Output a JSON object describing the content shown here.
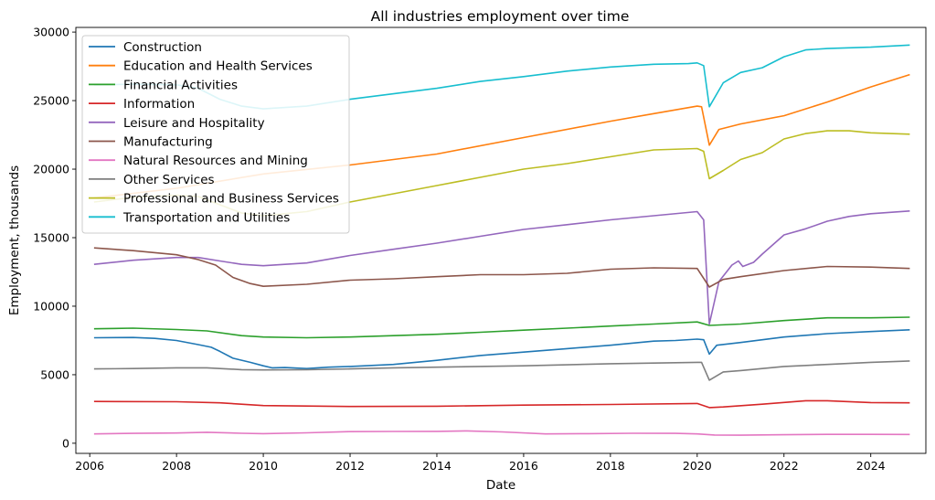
{
  "chart_data": {
    "type": "line",
    "title": "All industries employment over time",
    "xlabel": "Date",
    "ylabel": "Employment, thousands",
    "xlim": [
      2005.68,
      2025.27
    ],
    "ylim": [
      -740,
      30340
    ],
    "xticks": [
      2006,
      2008,
      2010,
      2012,
      2014,
      2016,
      2018,
      2020,
      2022,
      2024
    ],
    "yticks": [
      0,
      5000,
      10000,
      15000,
      20000,
      25000,
      30000
    ],
    "grid": false,
    "legend_position": "top-left",
    "series": [
      {
        "name": "Construction",
        "color": "#1f77b4",
        "points": [
          [
            2006.1,
            7700
          ],
          [
            2007.0,
            7720
          ],
          [
            2007.5,
            7650
          ],
          [
            2008.0,
            7500
          ],
          [
            2008.5,
            7200
          ],
          [
            2008.8,
            7000
          ],
          [
            2009.0,
            6700
          ],
          [
            2009.3,
            6200
          ],
          [
            2009.7,
            5900
          ],
          [
            2010.0,
            5650
          ],
          [
            2010.2,
            5500
          ],
          [
            2010.5,
            5520
          ],
          [
            2011.0,
            5450
          ],
          [
            2011.5,
            5550
          ],
          [
            2012.0,
            5600
          ],
          [
            2013.0,
            5750
          ],
          [
            2014.0,
            6050
          ],
          [
            2015.0,
            6400
          ],
          [
            2016.0,
            6650
          ],
          [
            2017.0,
            6900
          ],
          [
            2018.0,
            7150
          ],
          [
            2019.0,
            7450
          ],
          [
            2019.5,
            7500
          ],
          [
            2020.0,
            7600
          ],
          [
            2020.15,
            7550
          ],
          [
            2020.28,
            6500
          ],
          [
            2020.45,
            7150
          ],
          [
            2021.0,
            7350
          ],
          [
            2022.0,
            7750
          ],
          [
            2023.0,
            8000
          ],
          [
            2024.0,
            8150
          ],
          [
            2024.9,
            8280
          ]
        ]
      },
      {
        "name": "Education and Health Services",
        "color": "#ff7f0e",
        "points": [
          [
            2006.1,
            17900
          ],
          [
            2008.0,
            18600
          ],
          [
            2010.0,
            19650
          ],
          [
            2012.0,
            20300
          ],
          [
            2014.0,
            21100
          ],
          [
            2016.0,
            22300
          ],
          [
            2018.0,
            23500
          ],
          [
            2019.0,
            24050
          ],
          [
            2020.0,
            24600
          ],
          [
            2020.1,
            24550
          ],
          [
            2020.28,
            21750
          ],
          [
            2020.5,
            22900
          ],
          [
            2021.0,
            23300
          ],
          [
            2022.0,
            23900
          ],
          [
            2023.0,
            24900
          ],
          [
            2024.0,
            26000
          ],
          [
            2024.9,
            26900
          ]
        ]
      },
      {
        "name": "Financial Activities",
        "color": "#2ca02c",
        "points": [
          [
            2006.1,
            8350
          ],
          [
            2007.0,
            8400
          ],
          [
            2008.0,
            8300
          ],
          [
            2008.7,
            8200
          ],
          [
            2009.5,
            7850
          ],
          [
            2010.0,
            7750
          ],
          [
            2011.0,
            7700
          ],
          [
            2012.0,
            7750
          ],
          [
            2013.0,
            7850
          ],
          [
            2014.0,
            7950
          ],
          [
            2015.0,
            8100
          ],
          [
            2016.0,
            8250
          ],
          [
            2017.0,
            8400
          ],
          [
            2018.0,
            8550
          ],
          [
            2019.0,
            8700
          ],
          [
            2020.0,
            8850
          ],
          [
            2020.28,
            8600
          ],
          [
            2021.0,
            8700
          ],
          [
            2022.0,
            8950
          ],
          [
            2023.0,
            9150
          ],
          [
            2024.0,
            9150
          ],
          [
            2024.9,
            9200
          ]
        ]
      },
      {
        "name": "Information",
        "color": "#d62728",
        "points": [
          [
            2006.1,
            3050
          ],
          [
            2008.0,
            3030
          ],
          [
            2009.0,
            2950
          ],
          [
            2010.0,
            2750
          ],
          [
            2012.0,
            2680
          ],
          [
            2014.0,
            2700
          ],
          [
            2016.0,
            2780
          ],
          [
            2018.0,
            2830
          ],
          [
            2020.0,
            2900
          ],
          [
            2020.28,
            2600
          ],
          [
            2020.6,
            2650
          ],
          [
            2021.5,
            2850
          ],
          [
            2022.5,
            3100
          ],
          [
            2023.0,
            3100
          ],
          [
            2024.0,
            2970
          ],
          [
            2024.9,
            2950
          ]
        ]
      },
      {
        "name": "Leisure and Hospitality",
        "color": "#9467bd",
        "points": [
          [
            2006.1,
            13050
          ],
          [
            2007.0,
            13350
          ],
          [
            2008.0,
            13550
          ],
          [
            2008.5,
            13550
          ],
          [
            2009.0,
            13300
          ],
          [
            2009.5,
            13050
          ],
          [
            2010.0,
            12950
          ],
          [
            2011.0,
            13150
          ],
          [
            2012.0,
            13700
          ],
          [
            2013.0,
            14150
          ],
          [
            2014.0,
            14600
          ],
          [
            2015.0,
            15100
          ],
          [
            2016.0,
            15600
          ],
          [
            2017.0,
            15950
          ],
          [
            2018.0,
            16300
          ],
          [
            2019.0,
            16600
          ],
          [
            2020.0,
            16900
          ],
          [
            2020.15,
            16300
          ],
          [
            2020.28,
            8700
          ],
          [
            2020.5,
            11800
          ],
          [
            2020.8,
            13000
          ],
          [
            2020.95,
            13300
          ],
          [
            2021.05,
            12900
          ],
          [
            2021.3,
            13200
          ],
          [
            2021.5,
            13800
          ],
          [
            2022.0,
            15200
          ],
          [
            2022.5,
            15650
          ],
          [
            2023.0,
            16200
          ],
          [
            2023.5,
            16550
          ],
          [
            2024.0,
            16750
          ],
          [
            2024.9,
            16950
          ]
        ]
      },
      {
        "name": "Manufacturing",
        "color": "#8c564b",
        "points": [
          [
            2006.1,
            14250
          ],
          [
            2007.0,
            14050
          ],
          [
            2008.0,
            13750
          ],
          [
            2008.5,
            13400
          ],
          [
            2008.9,
            13000
          ],
          [
            2009.3,
            12100
          ],
          [
            2009.7,
            11650
          ],
          [
            2010.0,
            11450
          ],
          [
            2011.0,
            11600
          ],
          [
            2012.0,
            11900
          ],
          [
            2013.0,
            12000
          ],
          [
            2014.0,
            12150
          ],
          [
            2015.0,
            12300
          ],
          [
            2016.0,
            12300
          ],
          [
            2017.0,
            12400
          ],
          [
            2018.0,
            12700
          ],
          [
            2019.0,
            12800
          ],
          [
            2020.0,
            12750
          ],
          [
            2020.28,
            11400
          ],
          [
            2020.6,
            11950
          ],
          [
            2021.0,
            12150
          ],
          [
            2022.0,
            12600
          ],
          [
            2023.0,
            12900
          ],
          [
            2024.0,
            12850
          ],
          [
            2024.9,
            12750
          ]
        ]
      },
      {
        "name": "Natural Resources and Mining",
        "color": "#e377c2",
        "points": [
          [
            2006.1,
            680
          ],
          [
            2007.0,
            720
          ],
          [
            2008.0,
            750
          ],
          [
            2008.7,
            800
          ],
          [
            2009.5,
            730
          ],
          [
            2010.0,
            700
          ],
          [
            2011.0,
            760
          ],
          [
            2012.0,
            850
          ],
          [
            2013.0,
            860
          ],
          [
            2014.0,
            870
          ],
          [
            2014.7,
            900
          ],
          [
            2015.5,
            830
          ],
          [
            2016.5,
            680
          ],
          [
            2017.5,
            700
          ],
          [
            2018.5,
            730
          ],
          [
            2019.5,
            720
          ],
          [
            2020.0,
            680
          ],
          [
            2020.4,
            600
          ],
          [
            2021.0,
            590
          ],
          [
            2022.0,
            620
          ],
          [
            2023.0,
            650
          ],
          [
            2024.0,
            650
          ],
          [
            2024.9,
            640
          ]
        ]
      },
      {
        "name": "Other Services",
        "color": "#7f7f7f",
        "points": [
          [
            2006.1,
            5420
          ],
          [
            2007.0,
            5450
          ],
          [
            2008.0,
            5500
          ],
          [
            2008.7,
            5500
          ],
          [
            2009.5,
            5370
          ],
          [
            2010.0,
            5350
          ],
          [
            2011.0,
            5360
          ],
          [
            2012.0,
            5420
          ],
          [
            2013.0,
            5500
          ],
          [
            2014.0,
            5550
          ],
          [
            2016.0,
            5650
          ],
          [
            2018.0,
            5800
          ],
          [
            2020.0,
            5900
          ],
          [
            2020.1,
            5900
          ],
          [
            2020.28,
            4600
          ],
          [
            2020.6,
            5200
          ],
          [
            2021.0,
            5300
          ],
          [
            2022.0,
            5600
          ],
          [
            2023.0,
            5750
          ],
          [
            2024.0,
            5900
          ],
          [
            2024.9,
            6000
          ]
        ]
      },
      {
        "name": "Professional and Business Services",
        "color": "#bcbd22",
        "points": [
          [
            2006.1,
            17600
          ],
          [
            2007.0,
            17950
          ],
          [
            2008.0,
            18100
          ],
          [
            2008.5,
            18000
          ],
          [
            2009.0,
            17400
          ],
          [
            2009.5,
            16800
          ],
          [
            2010.0,
            16600
          ],
          [
            2011.0,
            16900
          ],
          [
            2012.0,
            17600
          ],
          [
            2013.0,
            18200
          ],
          [
            2014.0,
            18800
          ],
          [
            2015.0,
            19400
          ],
          [
            2016.0,
            20000
          ],
          [
            2017.0,
            20400
          ],
          [
            2018.0,
            20900
          ],
          [
            2019.0,
            21400
          ],
          [
            2020.0,
            21500
          ],
          [
            2020.15,
            21300
          ],
          [
            2020.28,
            19300
          ],
          [
            2020.6,
            19900
          ],
          [
            2021.0,
            20700
          ],
          [
            2021.5,
            21200
          ],
          [
            2022.0,
            22200
          ],
          [
            2022.5,
            22600
          ],
          [
            2023.0,
            22800
          ],
          [
            2023.5,
            22800
          ],
          [
            2024.0,
            22650
          ],
          [
            2024.9,
            22550
          ]
        ]
      },
      {
        "name": "Transportation and Utilities",
        "color": "#17becf",
        "points": [
          [
            2006.1,
            26150
          ],
          [
            2007.0,
            26200
          ],
          [
            2008.0,
            26150
          ],
          [
            2008.5,
            25900
          ],
          [
            2009.0,
            25100
          ],
          [
            2009.5,
            24600
          ],
          [
            2010.0,
            24400
          ],
          [
            2011.0,
            24600
          ],
          [
            2012.0,
            25100
          ],
          [
            2013.0,
            25500
          ],
          [
            2014.0,
            25900
          ],
          [
            2015.0,
            26400
          ],
          [
            2016.0,
            26750
          ],
          [
            2017.0,
            27150
          ],
          [
            2018.0,
            27450
          ],
          [
            2019.0,
            27650
          ],
          [
            2019.8,
            27700
          ],
          [
            2020.0,
            27750
          ],
          [
            2020.15,
            27550
          ],
          [
            2020.28,
            24550
          ],
          [
            2020.6,
            26300
          ],
          [
            2021.0,
            27050
          ],
          [
            2021.5,
            27400
          ],
          [
            2022.0,
            28200
          ],
          [
            2022.5,
            28700
          ],
          [
            2023.0,
            28800
          ],
          [
            2024.0,
            28900
          ],
          [
            2024.9,
            29050
          ]
        ]
      }
    ]
  }
}
